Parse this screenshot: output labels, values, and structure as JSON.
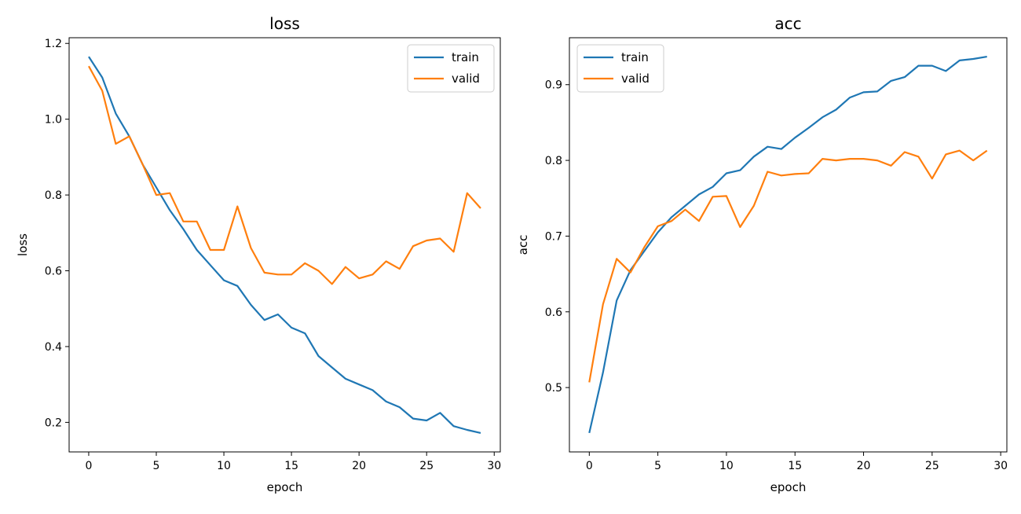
{
  "chart_data": [
    {
      "type": "line",
      "title": "loss",
      "xlabel": "epoch",
      "ylabel": "loss",
      "xlim": [
        -1.45,
        30.45
      ],
      "ylim": [
        0.122,
        1.215
      ],
      "xticks": [
        0,
        5,
        10,
        15,
        20,
        25,
        30
      ],
      "yticks": [
        0.2,
        0.4,
        0.6,
        0.8,
        1.0,
        1.2
      ],
      "ytick_labels": [
        "0.2",
        "0.4",
        "0.6",
        "0.8",
        "1.0",
        "1.2"
      ],
      "legend": "top-right",
      "x": [
        0,
        1,
        2,
        3,
        4,
        5,
        6,
        7,
        8,
        9,
        10,
        11,
        12,
        13,
        14,
        15,
        16,
        17,
        18,
        19,
        20,
        21,
        22,
        23,
        24,
        25,
        26,
        27,
        28,
        29
      ],
      "series": [
        {
          "name": "train",
          "color": "#1f77b4",
          "values": [
            1.165,
            1.11,
            1.015,
            0.955,
            0.88,
            0.82,
            0.76,
            0.71,
            0.655,
            0.615,
            0.575,
            0.56,
            0.51,
            0.47,
            0.485,
            0.45,
            0.435,
            0.375,
            0.345,
            0.315,
            0.3,
            0.285,
            0.255,
            0.24,
            0.21,
            0.205,
            0.225,
            0.19,
            0.18,
            0.172
          ]
        },
        {
          "name": "valid",
          "color": "#ff7f0e",
          "values": [
            1.14,
            1.075,
            0.935,
            0.955,
            0.88,
            0.8,
            0.805,
            0.73,
            0.73,
            0.655,
            0.655,
            0.77,
            0.66,
            0.595,
            0.59,
            0.59,
            0.62,
            0.6,
            0.565,
            0.61,
            0.58,
            0.59,
            0.625,
            0.605,
            0.665,
            0.68,
            0.685,
            0.65,
            0.805,
            0.765
          ]
        }
      ]
    },
    {
      "type": "line",
      "title": "acc",
      "xlabel": "epoch",
      "ylabel": "acc",
      "xlim": [
        -1.45,
        30.45
      ],
      "ylim": [
        0.415,
        0.962
      ],
      "xticks": [
        0,
        5,
        10,
        15,
        20,
        25,
        30
      ],
      "yticks": [
        0.5,
        0.6,
        0.7,
        0.8,
        0.9
      ],
      "ytick_labels": [
        "0.5",
        "0.6",
        "0.7",
        "0.8",
        "0.9"
      ],
      "legend": "top-left",
      "x": [
        0,
        1,
        2,
        3,
        4,
        5,
        6,
        7,
        8,
        9,
        10,
        11,
        12,
        13,
        14,
        15,
        16,
        17,
        18,
        19,
        20,
        21,
        22,
        23,
        24,
        25,
        26,
        27,
        28,
        29
      ],
      "series": [
        {
          "name": "train",
          "color": "#1f77b4",
          "values": [
            0.44,
            0.52,
            0.615,
            0.655,
            0.68,
            0.705,
            0.725,
            0.74,
            0.755,
            0.765,
            0.783,
            0.787,
            0.805,
            0.818,
            0.815,
            0.83,
            0.843,
            0.857,
            0.867,
            0.883,
            0.89,
            0.891,
            0.905,
            0.91,
            0.925,
            0.925,
            0.918,
            0.932,
            0.934,
            0.937
          ]
        },
        {
          "name": "valid",
          "color": "#ff7f0e",
          "values": [
            0.507,
            0.61,
            0.67,
            0.652,
            0.685,
            0.713,
            0.72,
            0.735,
            0.72,
            0.752,
            0.753,
            0.712,
            0.74,
            0.785,
            0.78,
            0.782,
            0.783,
            0.802,
            0.8,
            0.802,
            0.802,
            0.8,
            0.793,
            0.811,
            0.805,
            0.776,
            0.808,
            0.813,
            0.8,
            0.813
          ]
        }
      ]
    }
  ]
}
